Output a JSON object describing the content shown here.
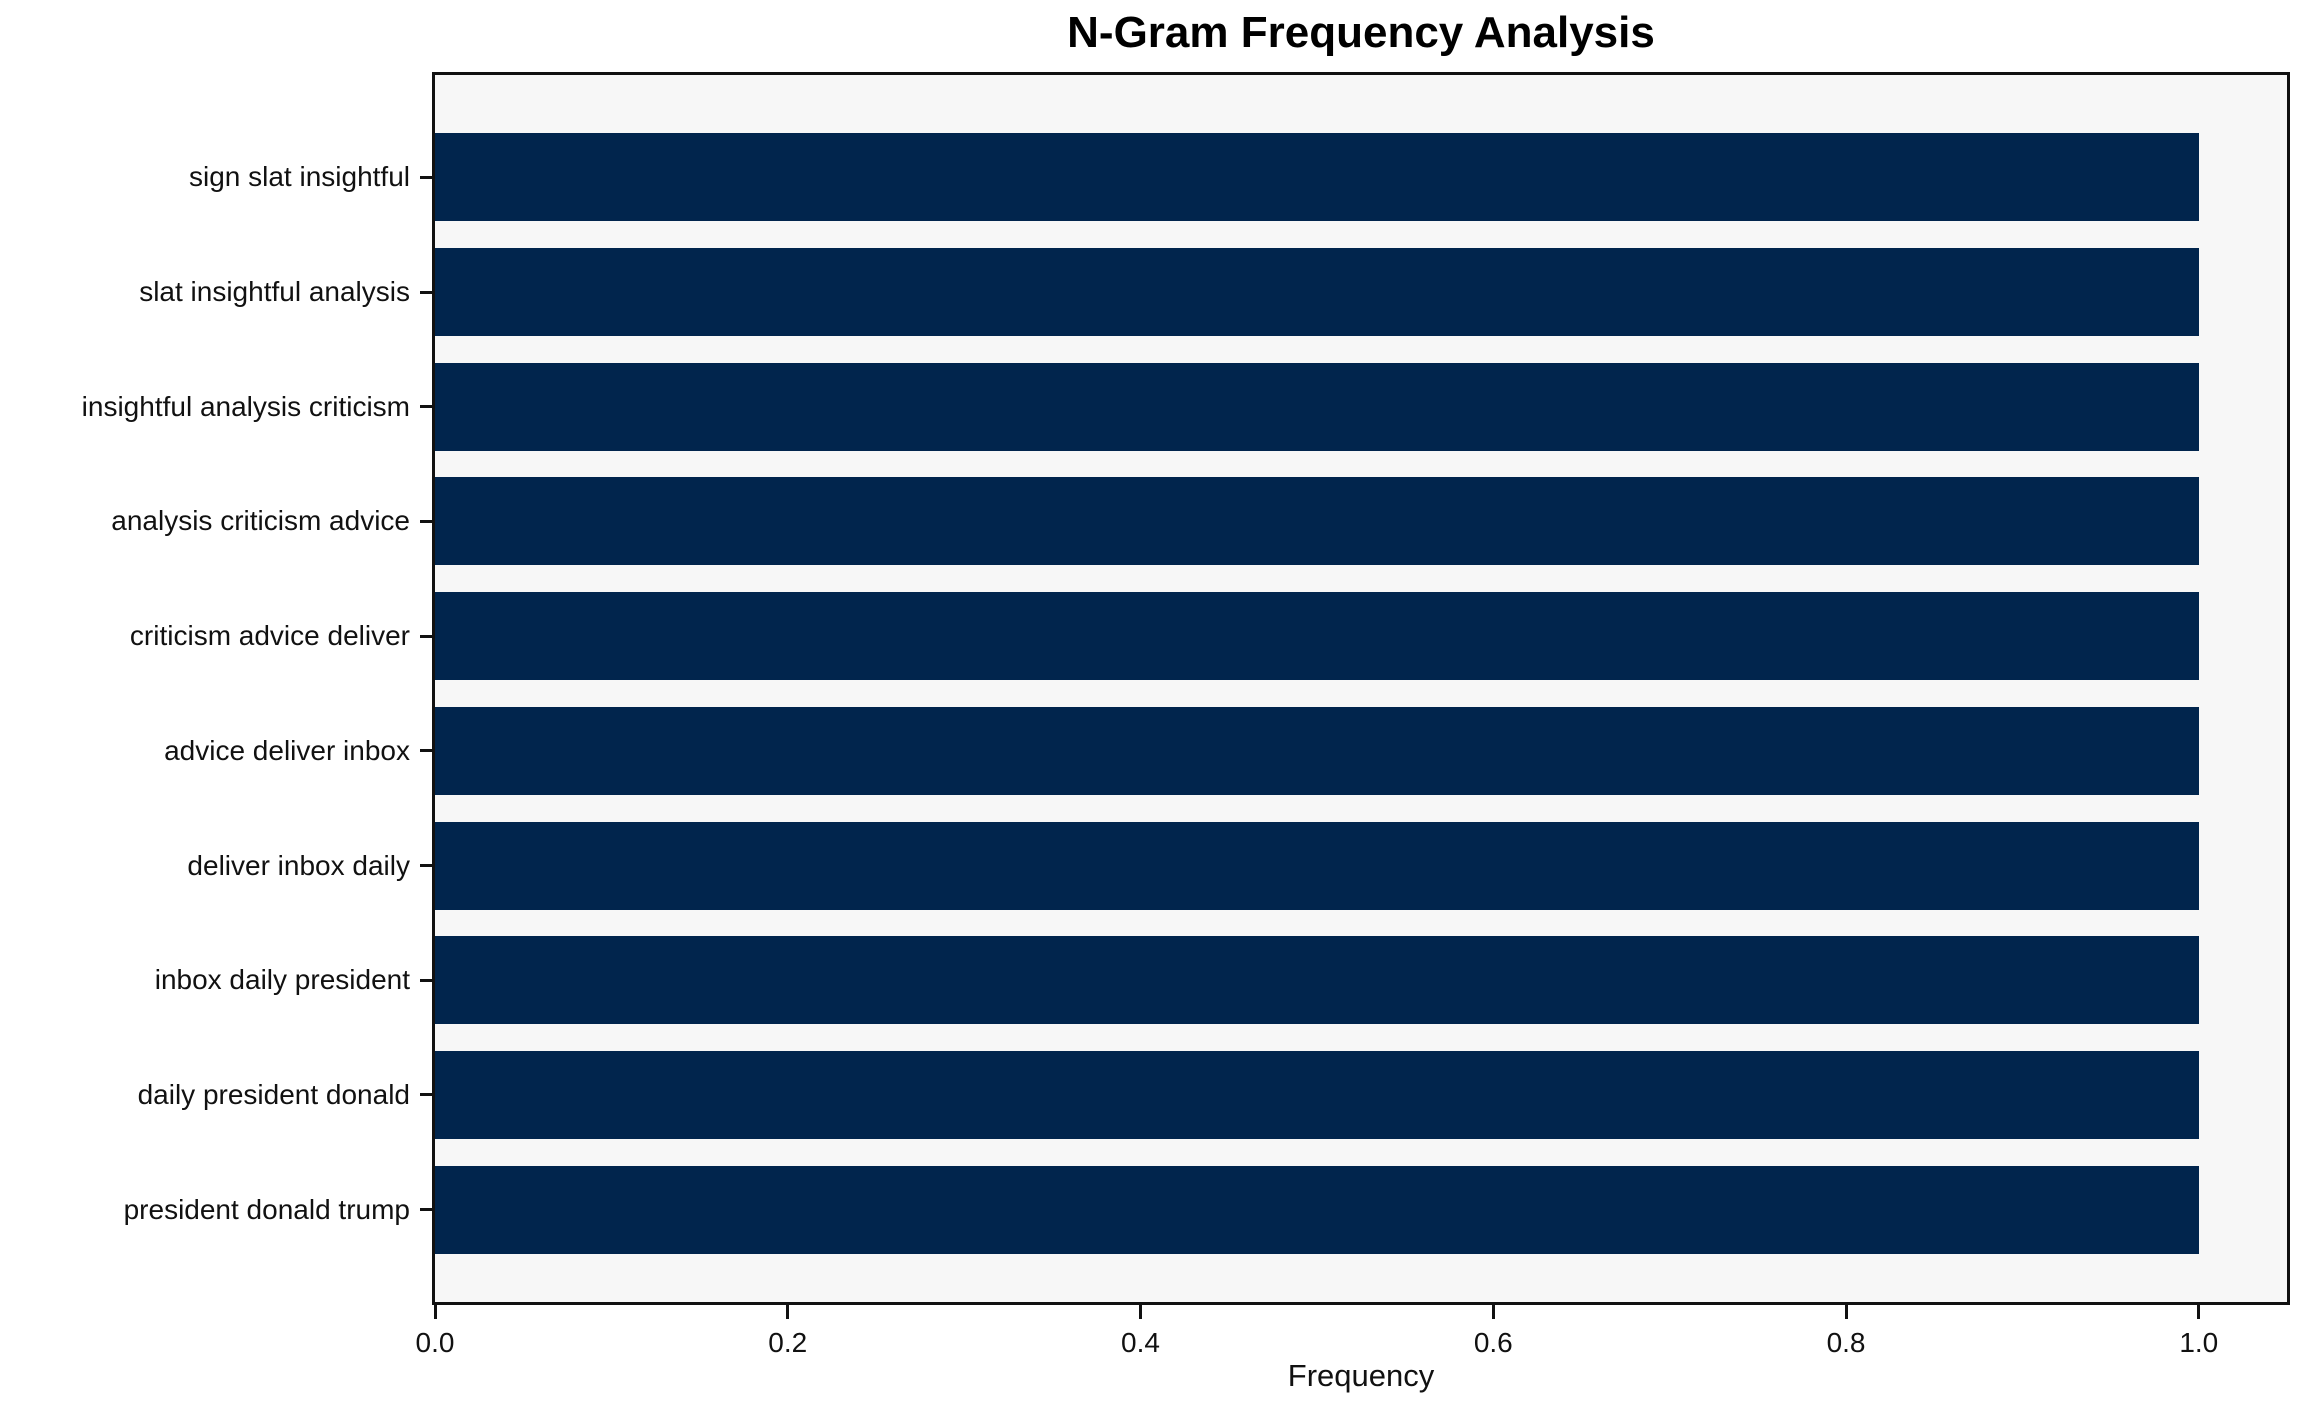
{
  "chart_data": {
    "type": "bar",
    "orientation": "horizontal",
    "title": "N-Gram Frequency Analysis",
    "xlabel": "Frequency",
    "ylabel": "",
    "categories": [
      "sign slat insightful",
      "slat insightful analysis",
      "insightful analysis criticism",
      "analysis criticism advice",
      "criticism advice deliver",
      "advice deliver inbox",
      "deliver inbox daily",
      "inbox daily president",
      "daily president donald",
      "president donald trump"
    ],
    "values": [
      1.0,
      1.0,
      1.0,
      1.0,
      1.0,
      1.0,
      1.0,
      1.0,
      1.0,
      1.0
    ],
    "xlim": [
      0,
      1.05
    ],
    "xticks": [
      0.0,
      0.2,
      0.4,
      0.6,
      0.8,
      1.0
    ],
    "xtick_labels": [
      "0.0",
      "0.2",
      "0.4",
      "0.6",
      "0.8",
      "1.0"
    ],
    "grid": false,
    "legend": "none",
    "bar_color": "#01254d",
    "plot_bg": "#f7f7f7",
    "figure_bg": "#ffffff",
    "spine_color": "#111111"
  }
}
